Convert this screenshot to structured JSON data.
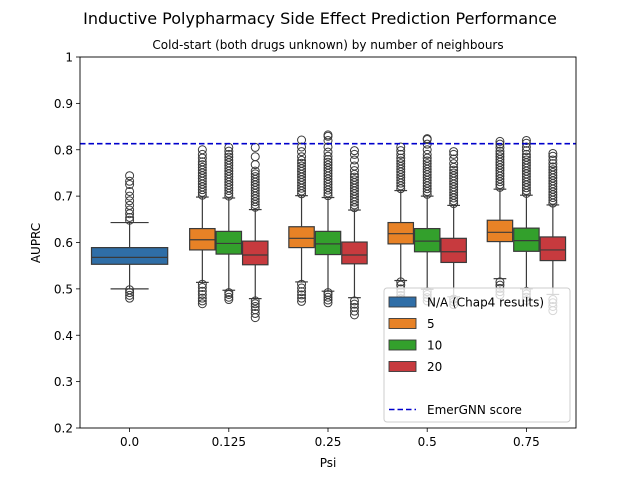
{
  "colors": {
    "na": "#2f6ea7",
    "n5": "#e88226",
    "n10": "#33a02c",
    "n20": "#c73a3e",
    "line": "#0000cc",
    "outline": "#3a3a3a"
  },
  "chart_data": {
    "type": "box",
    "title": "Inductive Polypharmacy Side Effect Prediction Performance",
    "subtitle": "Cold-start (both drugs unknown) by number of neighbours",
    "xlabel": "Psi",
    "ylabel": "AUPRC",
    "ylim": [
      0.2,
      1.0
    ],
    "yticks": [
      0.2,
      0.3,
      0.4,
      0.5,
      0.6,
      0.7,
      0.8,
      0.9,
      1.0
    ],
    "categories": [
      "0.0",
      "0.125",
      "0.25",
      "0.5",
      "0.75"
    ],
    "legend": {
      "position": "lower right",
      "items": [
        "N/A (Chap4 results)",
        "5",
        "10",
        "20",
        "",
        "EmerGNN score"
      ]
    },
    "reference_line": {
      "name": "EmerGNN score",
      "value": 0.813,
      "style": "dashed"
    },
    "series": [
      {
        "name": "N/A (Chap4 results)",
        "color_key": "na",
        "boxes": [
          {
            "category": "0.0",
            "q1": 0.553,
            "median": 0.568,
            "q3": 0.589,
            "whisker_low": 0.5,
            "whisker_high": 0.643,
            "outliers": [
              0.48,
              0.486,
              0.492,
              0.498,
              0.648,
              0.654,
              0.662,
              0.67,
              0.68,
              0.69,
              0.7,
              0.71,
              0.725,
              0.732,
              0.744
            ]
          }
        ]
      },
      {
        "name": "5",
        "color_key": "n5",
        "boxes": [
          {
            "category": "0.125",
            "q1": 0.584,
            "median": 0.606,
            "q3": 0.63,
            "whisker_low": 0.514,
            "whisker_high": 0.698,
            "outliers": [
              0.468,
              0.474,
              0.48,
              0.488,
              0.495,
              0.503,
              0.51,
              0.702,
              0.708,
              0.714,
              0.72,
              0.726,
              0.732,
              0.738,
              0.744,
              0.75,
              0.756,
              0.762,
              0.768,
              0.774,
              0.782,
              0.79,
              0.8
            ]
          },
          {
            "category": "0.25",
            "q1": 0.589,
            "median": 0.609,
            "q3": 0.634,
            "whisker_low": 0.515,
            "whisker_high": 0.701,
            "outliers": [
              0.473,
              0.48,
              0.487,
              0.494,
              0.502,
              0.51,
              0.705,
              0.711,
              0.717,
              0.723,
              0.729,
              0.735,
              0.741,
              0.747,
              0.753,
              0.759,
              0.765,
              0.771,
              0.777,
              0.785,
              0.796,
              0.806,
              0.821
            ]
          },
          {
            "category": "0.5",
            "q1": 0.597,
            "median": 0.619,
            "q3": 0.643,
            "whisker_low": 0.518,
            "whisker_high": 0.712,
            "outliers": [
              0.479,
              0.486,
              0.493,
              0.5,
              0.508,
              0.515,
              0.716,
              0.722,
              0.728,
              0.734,
              0.74,
              0.746,
              0.752,
              0.758,
              0.764,
              0.77,
              0.776,
              0.782,
              0.79,
              0.798,
              0.806
            ]
          },
          {
            "category": "0.75",
            "q1": 0.602,
            "median": 0.622,
            "q3": 0.648,
            "whisker_low": 0.522,
            "whisker_high": 0.715,
            "outliers": [
              0.487,
              0.494,
              0.501,
              0.508,
              0.515,
              0.719,
              0.725,
              0.731,
              0.737,
              0.743,
              0.749,
              0.755,
              0.761,
              0.767,
              0.773,
              0.779,
              0.785,
              0.791,
              0.797,
              0.805,
              0.812,
              0.818
            ]
          }
        ]
      },
      {
        "name": "10",
        "color_key": "n10",
        "boxes": [
          {
            "category": "0.125",
            "q1": 0.575,
            "median": 0.598,
            "q3": 0.624,
            "whisker_low": 0.497,
            "whisker_high": 0.696,
            "outliers": [
              0.477,
              0.482,
              0.488,
              0.492,
              0.7,
              0.706,
              0.712,
              0.718,
              0.724,
              0.73,
              0.736,
              0.742,
              0.748,
              0.754,
              0.76,
              0.766,
              0.772,
              0.778,
              0.784,
              0.79,
              0.797,
              0.805
            ]
          },
          {
            "category": "0.25",
            "q1": 0.574,
            "median": 0.597,
            "q3": 0.624,
            "whisker_low": 0.495,
            "whisker_high": 0.697,
            "outliers": [
              0.47,
              0.476,
              0.482,
              0.488,
              0.492,
              0.701,
              0.707,
              0.713,
              0.719,
              0.725,
              0.731,
              0.737,
              0.743,
              0.749,
              0.755,
              0.761,
              0.767,
              0.773,
              0.779,
              0.786,
              0.795,
              0.806,
              0.82,
              0.829,
              0.832
            ]
          },
          {
            "category": "0.5",
            "q1": 0.58,
            "median": 0.603,
            "q3": 0.63,
            "whisker_low": 0.499,
            "whisker_high": 0.7,
            "outliers": [
              0.474,
              0.481,
              0.488,
              0.494,
              0.704,
              0.71,
              0.716,
              0.722,
              0.728,
              0.734,
              0.74,
              0.746,
              0.752,
              0.758,
              0.764,
              0.77,
              0.776,
              0.782,
              0.79,
              0.8,
              0.812,
              0.822,
              0.824
            ]
          },
          {
            "category": "0.75",
            "q1": 0.581,
            "median": 0.604,
            "q3": 0.631,
            "whisker_low": 0.5,
            "whisker_high": 0.702,
            "outliers": [
              0.475,
              0.482,
              0.489,
              0.495,
              0.706,
              0.712,
              0.718,
              0.724,
              0.73,
              0.736,
              0.742,
              0.748,
              0.754,
              0.76,
              0.766,
              0.772,
              0.778,
              0.784,
              0.79,
              0.798,
              0.806,
              0.814,
              0.82
            ]
          }
        ]
      },
      {
        "name": "20",
        "color_key": "n20",
        "boxes": [
          {
            "category": "0.125",
            "q1": 0.552,
            "median": 0.573,
            "q3": 0.603,
            "whisker_low": 0.479,
            "whisker_high": 0.671,
            "outliers": [
              0.438,
              0.447,
              0.455,
              0.462,
              0.468,
              0.474,
              0.676,
              0.682,
              0.688,
              0.694,
              0.7,
              0.706,
              0.712,
              0.718,
              0.724,
              0.73,
              0.736,
              0.742,
              0.748,
              0.754,
              0.768,
              0.785,
              0.805
            ]
          },
          {
            "category": "0.25",
            "q1": 0.554,
            "median": 0.573,
            "q3": 0.601,
            "whisker_low": 0.481,
            "whisker_high": 0.67,
            "outliers": [
              0.444,
              0.452,
              0.46,
              0.467,
              0.474,
              0.675,
              0.681,
              0.687,
              0.693,
              0.699,
              0.705,
              0.711,
              0.717,
              0.723,
              0.729,
              0.735,
              0.741,
              0.747,
              0.755,
              0.765,
              0.778,
              0.79,
              0.798
            ]
          },
          {
            "category": "0.5",
            "q1": 0.557,
            "median": 0.58,
            "q3": 0.609,
            "whisker_low": 0.483,
            "whisker_high": 0.68,
            "outliers": [
              0.466,
              0.472,
              0.478,
              0.684,
              0.69,
              0.696,
              0.702,
              0.708,
              0.714,
              0.72,
              0.726,
              0.732,
              0.738,
              0.744,
              0.75,
              0.756,
              0.762,
              0.77,
              0.78,
              0.79,
              0.796
            ]
          },
          {
            "category": "0.75",
            "q1": 0.561,
            "median": 0.584,
            "q3": 0.612,
            "whisker_low": 0.488,
            "whisker_high": 0.681,
            "outliers": [
              0.453,
              0.462,
              0.47,
              0.477,
              0.685,
              0.691,
              0.697,
              0.703,
              0.709,
              0.715,
              0.721,
              0.727,
              0.733,
              0.739,
              0.745,
              0.751,
              0.757,
              0.763,
              0.77,
              0.778,
              0.786,
              0.792
            ]
          }
        ]
      }
    ]
  }
}
